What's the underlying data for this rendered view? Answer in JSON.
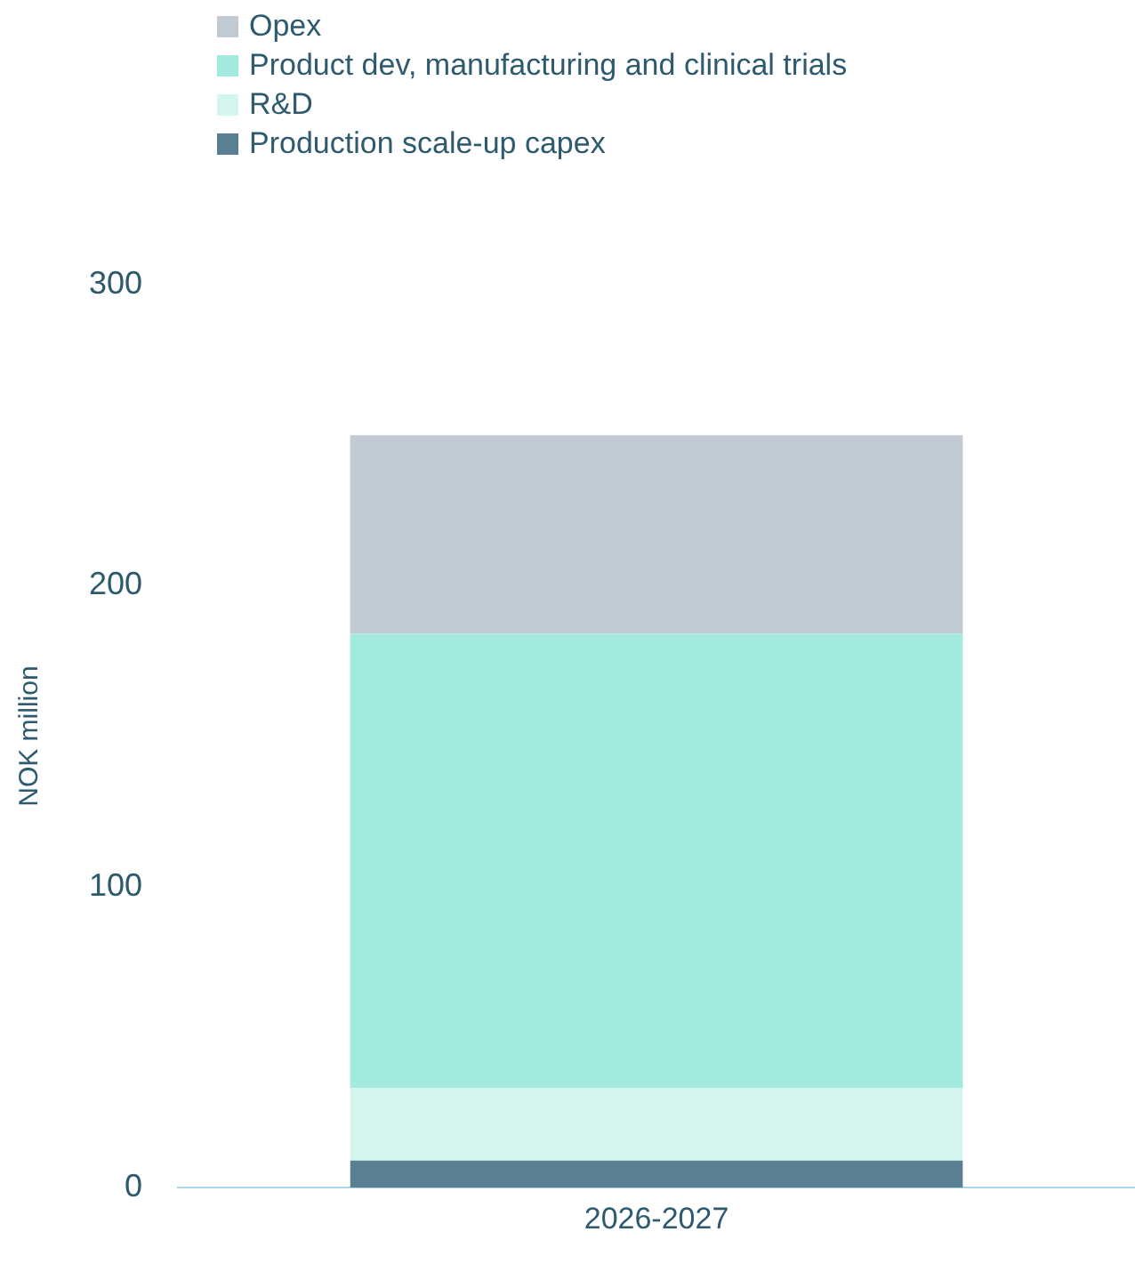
{
  "chart_data": {
    "type": "bar",
    "stacked": true,
    "ylabel": "NOK million",
    "categories": [
      "2026-2027"
    ],
    "series": [
      {
        "name": "Production scale-up capex",
        "color": "#5b7f92",
        "values": [
          9
        ]
      },
      {
        "name": "R&D",
        "color": "#d3f5ee",
        "values": [
          24
        ]
      },
      {
        "name": "Product dev, manufacturing and clinical trials",
        "color": "#a3eade",
        "values": [
          151
        ]
      },
      {
        "name": "Opex",
        "color": "#c2cbd4",
        "values": [
          66
        ]
      }
    ],
    "ylim": [
      0,
      300
    ],
    "yticks": [
      0,
      100,
      200,
      300
    ],
    "grid": false,
    "legend": "top left"
  }
}
